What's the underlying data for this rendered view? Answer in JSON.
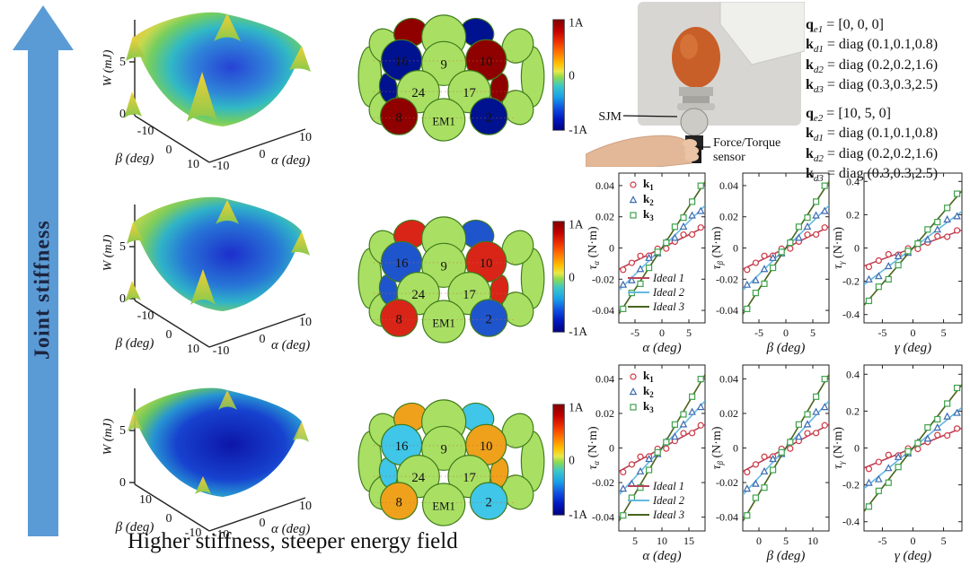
{
  "arrow": {
    "label": "Joint stiffness",
    "color": "#5b9bd5"
  },
  "caption": "Higher stiffness, steeper energy field",
  "surfaces": [
    {
      "zlabel": "W (mJ)",
      "zticks": [
        "5",
        "0"
      ],
      "ylabel": "β (deg)",
      "yticks": [
        "-10",
        "0",
        "10"
      ],
      "xlabel": "α (deg)",
      "xticks": [
        "-10",
        "0",
        "10"
      ]
    },
    {
      "zlabel": "W (mJ)",
      "zticks": [
        "5",
        "0"
      ],
      "ylabel": "β (deg)",
      "yticks": [
        "-10",
        "0",
        "10"
      ],
      "xlabel": "α (deg)",
      "xticks": [
        "-10",
        "0",
        "10"
      ]
    },
    {
      "zlabel": "W (mJ)",
      "zticks": [
        "5",
        "0"
      ],
      "ylabel": "β (deg)",
      "yticks": [
        "10",
        "0",
        "-10"
      ],
      "xlabel": "α (deg)",
      "xticks": [
        "-10",
        "0",
        "10"
      ]
    }
  ],
  "em_numbers": {
    "c16": "16",
    "c9": "9",
    "c10": "10",
    "c24": "24",
    "c17": "17",
    "c8": "8",
    "em1": "EM1",
    "c2": "2"
  },
  "colorbar": {
    "top": "1A",
    "mid": "0",
    "bottom": "-1A"
  },
  "em_rows": [
    {
      "name": "strong-current",
      "pos": "#8f0000",
      "neg": "#00128f"
    },
    {
      "name": "medium-current",
      "pos": "#d92518",
      "neg": "#1f55cc"
    },
    {
      "name": "weak-current",
      "pos": "#efa11c",
      "neg": "#3fc6e8"
    }
  ],
  "photo": {
    "label_sjm": "SJM",
    "label_sensor_1": "Force/Torque",
    "label_sensor_2": "sensor"
  },
  "params": {
    "group1": [
      {
        "sym": "q",
        "sub": "e1",
        "rest": " = [0, 0, 0]"
      },
      {
        "sym": "k",
        "sub": "d1",
        "rest": " = diag (0.1,0.1,0.8)"
      },
      {
        "sym": "k",
        "sub": "d2",
        "rest": " = diag (0.2,0.2,1.6)"
      },
      {
        "sym": "k",
        "sub": "d3",
        "rest": " = diag (0.3,0.3,2.5)"
      }
    ],
    "group2": [
      {
        "sym": "q",
        "sub": "e2",
        "rest": " = [10, 5, 0]"
      },
      {
        "sym": "k",
        "sub": "d1",
        "rest": " = diag (0.1,0.1,0.8)"
      },
      {
        "sym": "k",
        "sub": "d2",
        "rest": " = diag (0.2,0.2,1.6)"
      },
      {
        "sym": "k",
        "sub": "d3",
        "rest": " = diag (0.3,0.3,2.5)"
      }
    ]
  },
  "legend": {
    "markers": [
      {
        "sym": "k",
        "sub": "1"
      },
      {
        "sym": "k",
        "sub": "2"
      },
      {
        "sym": "k",
        "sub": "3"
      }
    ],
    "lines": [
      "Ideal 1",
      "Ideal 2",
      "Ideal 3"
    ]
  },
  "series_style": [
    {
      "marker": "circle",
      "line": "#b64459",
      "mark": "#cf3642"
    },
    {
      "marker": "triangle",
      "line": "#66b8e2",
      "mark": "#3a6ab0"
    },
    {
      "marker": "square",
      "line": "#49641d",
      "mark": "#3fa24c"
    }
  ],
  "chart_data": [
    {
      "type": "scatter",
      "panel": "top-alpha",
      "xlabel": "α (deg)",
      "ysym": "τ",
      "ysub": "α",
      "yunit": " (N·m)",
      "xlim": [
        -8,
        8
      ],
      "ylim": [
        -0.048,
        0.048
      ],
      "xtick_vals": [
        -5,
        0,
        5
      ],
      "xticks": [
        "-5",
        "0",
        "5"
      ],
      "ytick_vals": [
        0.04,
        0.02,
        0,
        -0.02,
        -0.04
      ],
      "yticks": [
        "0.04",
        "0.02",
        "0",
        "-0.02",
        "-0.04"
      ],
      "x0": 0,
      "slopes": [
        0.0017,
        0.0034,
        0.0053
      ],
      "legend": true
    },
    {
      "type": "scatter",
      "panel": "top-beta",
      "xlabel": "β (deg)",
      "ysym": "τ",
      "ysub": "β",
      "yunit": " (N·m)",
      "xlim": [
        -8,
        8
      ],
      "ylim": [
        -0.048,
        0.048
      ],
      "xtick_vals": [
        -5,
        0,
        5
      ],
      "xticks": [
        "-5",
        "0",
        "5"
      ],
      "ytick_vals": [
        0.04,
        0.02,
        0,
        -0.02,
        -0.04
      ],
      "yticks": [
        "0.04",
        "0.02",
        "0",
        "-0.02",
        "-0.04"
      ],
      "x0": 0,
      "slopes": [
        0.0017,
        0.0034,
        0.0053
      ],
      "legend": false
    },
    {
      "type": "scatter",
      "panel": "top-gamma",
      "xlabel": "γ (deg)",
      "ysym": "τ",
      "ysub": "γ",
      "yunit": " (N·m)",
      "xlim": [
        -8,
        8
      ],
      "ylim": [
        -0.45,
        0.45
      ],
      "xtick_vals": [
        -5,
        0,
        5
      ],
      "xticks": [
        "-5",
        "0",
        "5"
      ],
      "ytick_vals": [
        0.4,
        0.2,
        0,
        -0.2,
        -0.4
      ],
      "yticks": [
        "0.4",
        "0.2",
        "0",
        "-0.2",
        "-0.4"
      ],
      "x0": 0,
      "slopes": [
        0.0135,
        0.0275,
        0.043
      ],
      "legend": false
    },
    {
      "type": "scatter",
      "panel": "bottom-alpha",
      "xlabel": "α (deg)",
      "ysym": "τ",
      "ysub": "α",
      "yunit": " (N·m)",
      "xlim": [
        2,
        18
      ],
      "ylim": [
        -0.048,
        0.048
      ],
      "xtick_vals": [
        5,
        10,
        15
      ],
      "xticks": [
        "5",
        "10",
        "15"
      ],
      "ytick_vals": [
        0.04,
        0.02,
        0,
        -0.02,
        -0.04
      ],
      "yticks": [
        "0.04",
        "0.02",
        "0",
        "-0.02",
        "-0.04"
      ],
      "x0": 10,
      "slopes": [
        0.0017,
        0.0034,
        0.0053
      ],
      "legend": true
    },
    {
      "type": "scatter",
      "panel": "bottom-beta",
      "xlabel": "β (deg)",
      "ysym": "τ",
      "ysub": "β",
      "yunit": " (N·m)",
      "xlim": [
        -3,
        13
      ],
      "ylim": [
        -0.048,
        0.048
      ],
      "xtick_vals": [
        0,
        5,
        10
      ],
      "xticks": [
        "0",
        "5",
        "10"
      ],
      "ytick_vals": [
        0.04,
        0.02,
        0,
        -0.02,
        -0.04
      ],
      "yticks": [
        "0.04",
        "0.02",
        "0",
        "-0.02",
        "-0.04"
      ],
      "x0": 5,
      "slopes": [
        0.0017,
        0.0034,
        0.0053
      ],
      "legend": false
    },
    {
      "type": "scatter",
      "panel": "bottom-gamma",
      "xlabel": "γ (deg)",
      "ysym": "τ",
      "ysub": "γ",
      "yunit": " (N·m)",
      "xlim": [
        -8,
        8
      ],
      "ylim": [
        -0.45,
        0.45
      ],
      "xtick_vals": [
        -5,
        0,
        5
      ],
      "xticks": [
        "-5",
        "0",
        "5"
      ],
      "ytick_vals": [
        0.4,
        0.2,
        0,
        -0.2,
        -0.4
      ],
      "yticks": [
        "0.4",
        "0.2",
        "0",
        "-0.2",
        "-0.4"
      ],
      "x0": 0,
      "slopes": [
        0.0135,
        0.0275,
        0.043
      ],
      "legend": false
    }
  ]
}
